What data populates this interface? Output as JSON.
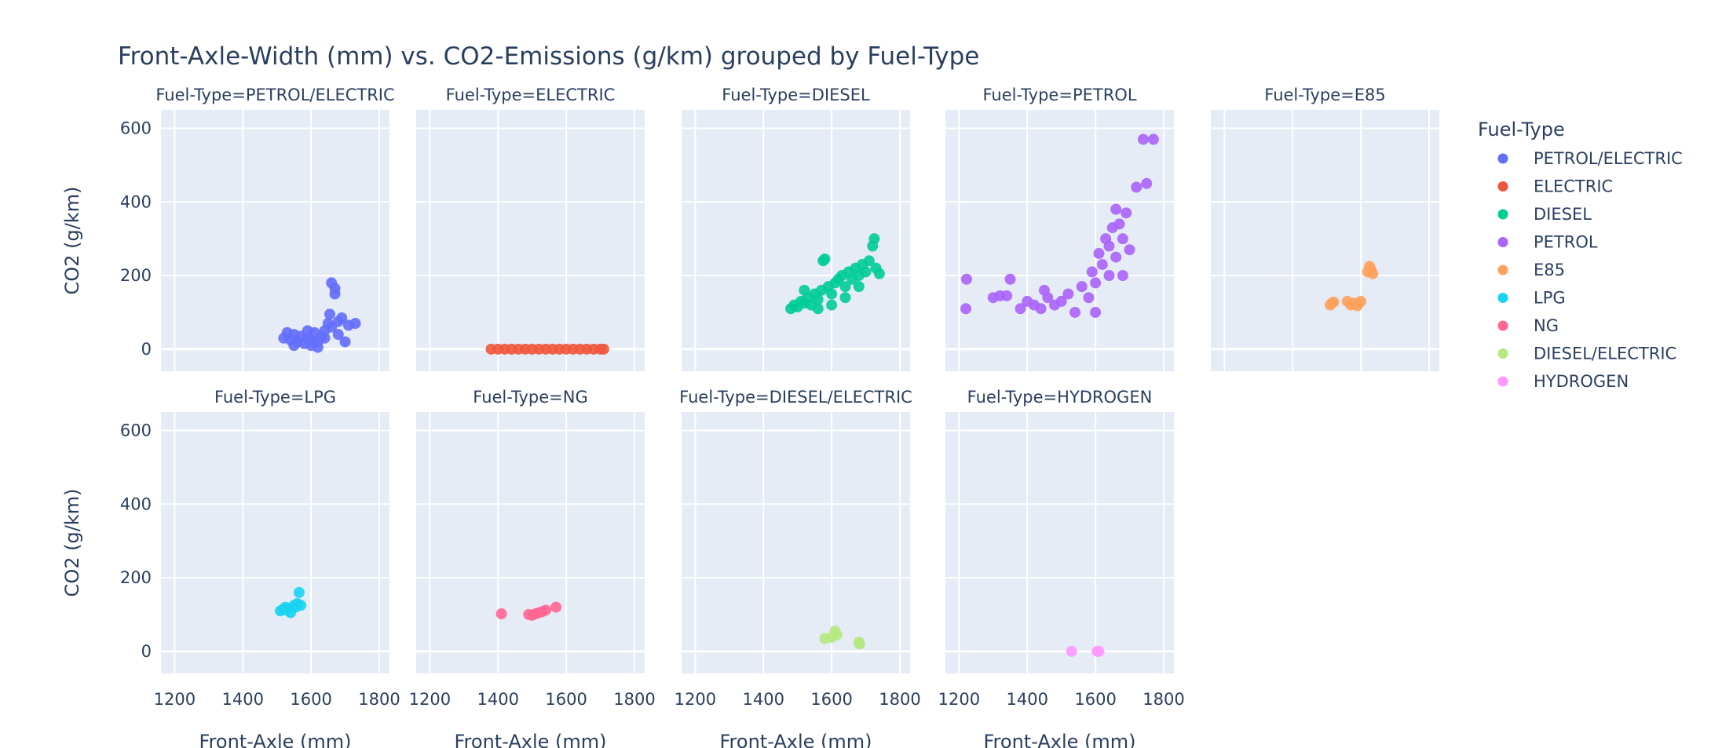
{
  "chart_data": {
    "type": "scatter",
    "title": "Front-Axle-Width (mm) vs. CO2-Emissions (g/km) grouped by Fuel-Type",
    "xlabel": "Front-Axle (mm)",
    "ylabel": "CO2 (g/km)",
    "xlim": [
      1160,
      1830
    ],
    "ylim": [
      -60,
      650
    ],
    "xticks": [
      1200,
      1400,
      1600,
      1800
    ],
    "yticks": [
      0,
      200,
      400,
      600
    ],
    "grid": true,
    "legend_title": "Fuel-Type",
    "legend_position": "right",
    "facet_prefix": "Fuel-Type=",
    "series": [
      {
        "name": "PETROL/ELECTRIC",
        "color": "#636efa",
        "points": [
          [
            1520,
            30
          ],
          [
            1530,
            45
          ],
          [
            1540,
            25
          ],
          [
            1550,
            40
          ],
          [
            1560,
            20
          ],
          [
            1570,
            35
          ],
          [
            1580,
            15
          ],
          [
            1590,
            30
          ],
          [
            1600,
            25
          ],
          [
            1610,
            45
          ],
          [
            1620,
            20
          ],
          [
            1630,
            35
          ],
          [
            1640,
            50
          ],
          [
            1650,
            70
          ],
          [
            1655,
            95
          ],
          [
            1660,
            60
          ],
          [
            1660,
            180
          ],
          [
            1670,
            165
          ],
          [
            1670,
            150
          ],
          [
            1680,
            40
          ],
          [
            1690,
            85
          ],
          [
            1700,
            20
          ],
          [
            1710,
            65
          ],
          [
            1730,
            70
          ],
          [
            1550,
            10
          ],
          [
            1600,
            10
          ],
          [
            1620,
            5
          ],
          [
            1640,
            30
          ],
          [
            1680,
            75
          ],
          [
            1590,
            50
          ]
        ]
      },
      {
        "name": "ELECTRIC",
        "color": "#ef553b",
        "points": [
          [
            1380,
            0
          ],
          [
            1400,
            0
          ],
          [
            1420,
            0
          ],
          [
            1440,
            0
          ],
          [
            1460,
            0
          ],
          [
            1480,
            0
          ],
          [
            1500,
            0
          ],
          [
            1520,
            0
          ],
          [
            1540,
            0
          ],
          [
            1560,
            0
          ],
          [
            1580,
            0
          ],
          [
            1600,
            0
          ],
          [
            1620,
            0
          ],
          [
            1640,
            0
          ],
          [
            1660,
            0
          ],
          [
            1680,
            0
          ],
          [
            1700,
            0
          ],
          [
            1710,
            0
          ]
        ]
      },
      {
        "name": "DIESEL",
        "color": "#00cc96",
        "points": [
          [
            1480,
            110
          ],
          [
            1490,
            120
          ],
          [
            1500,
            115
          ],
          [
            1510,
            130
          ],
          [
            1520,
            125
          ],
          [
            1530,
            140
          ],
          [
            1540,
            120
          ],
          [
            1550,
            150
          ],
          [
            1560,
            135
          ],
          [
            1570,
            160
          ],
          [
            1575,
            240
          ],
          [
            1580,
            245
          ],
          [
            1590,
            170
          ],
          [
            1600,
            150
          ],
          [
            1610,
            180
          ],
          [
            1620,
            190
          ],
          [
            1630,
            200
          ],
          [
            1640,
            170
          ],
          [
            1650,
            210
          ],
          [
            1660,
            190
          ],
          [
            1670,
            220
          ],
          [
            1680,
            200
          ],
          [
            1690,
            230
          ],
          [
            1700,
            210
          ],
          [
            1710,
            240
          ],
          [
            1720,
            280
          ],
          [
            1725,
            300
          ],
          [
            1730,
            220
          ],
          [
            1740,
            205
          ],
          [
            1520,
            160
          ],
          [
            1560,
            110
          ],
          [
            1600,
            120
          ],
          [
            1640,
            140
          ],
          [
            1680,
            170
          ]
        ]
      },
      {
        "name": "PETROL",
        "color": "#ab63fa",
        "points": [
          [
            1220,
            110
          ],
          [
            1222,
            190
          ],
          [
            1300,
            140
          ],
          [
            1320,
            145
          ],
          [
            1340,
            145
          ],
          [
            1350,
            190
          ],
          [
            1380,
            110
          ],
          [
            1400,
            130
          ],
          [
            1420,
            120
          ],
          [
            1440,
            110
          ],
          [
            1460,
            140
          ],
          [
            1480,
            120
          ],
          [
            1500,
            130
          ],
          [
            1520,
            150
          ],
          [
            1540,
            100
          ],
          [
            1560,
            170
          ],
          [
            1580,
            140
          ],
          [
            1590,
            210
          ],
          [
            1600,
            180
          ],
          [
            1610,
            260
          ],
          [
            1620,
            230
          ],
          [
            1630,
            300
          ],
          [
            1640,
            280
          ],
          [
            1650,
            330
          ],
          [
            1660,
            380
          ],
          [
            1670,
            340
          ],
          [
            1680,
            300
          ],
          [
            1690,
            370
          ],
          [
            1700,
            270
          ],
          [
            1720,
            440
          ],
          [
            1740,
            570
          ],
          [
            1750,
            450
          ],
          [
            1770,
            570
          ],
          [
            1600,
            100
          ],
          [
            1640,
            200
          ],
          [
            1660,
            250
          ],
          [
            1680,
            200
          ],
          [
            1450,
            160
          ]
        ]
      },
      {
        "name": "E85",
        "color": "#ffa15a",
        "points": [
          [
            1510,
            120
          ],
          [
            1515,
            125
          ],
          [
            1520,
            128
          ],
          [
            1560,
            130
          ],
          [
            1570,
            120
          ],
          [
            1580,
            125
          ],
          [
            1590,
            118
          ],
          [
            1600,
            130
          ],
          [
            1620,
            210
          ],
          [
            1625,
            225
          ],
          [
            1630,
            215
          ],
          [
            1635,
            205
          ]
        ]
      },
      {
        "name": "LPG",
        "color": "#19d3f3",
        "points": [
          [
            1510,
            110
          ],
          [
            1520,
            115
          ],
          [
            1525,
            120
          ],
          [
            1530,
            112
          ],
          [
            1540,
            105
          ],
          [
            1550,
            125
          ],
          [
            1555,
            120
          ],
          [
            1560,
            130
          ],
          [
            1565,
            160
          ],
          [
            1570,
            125
          ]
        ]
      },
      {
        "name": "NG",
        "color": "#ff6692",
        "points": [
          [
            1410,
            102
          ],
          [
            1490,
            100
          ],
          [
            1500,
            98
          ],
          [
            1510,
            102
          ],
          [
            1520,
            105
          ],
          [
            1530,
            108
          ],
          [
            1540,
            112
          ],
          [
            1570,
            120
          ]
        ]
      },
      {
        "name": "DIESEL/ELECTRIC",
        "color": "#b6e880",
        "points": [
          [
            1580,
            35
          ],
          [
            1600,
            38
          ],
          [
            1610,
            55
          ],
          [
            1615,
            45
          ],
          [
            1680,
            25
          ],
          [
            1682,
            20
          ]
        ]
      },
      {
        "name": "HYDROGEN",
        "color": "#ff97ff",
        "points": [
          [
            1530,
            0
          ],
          [
            1605,
            0
          ],
          [
            1610,
            0
          ]
        ]
      }
    ]
  }
}
